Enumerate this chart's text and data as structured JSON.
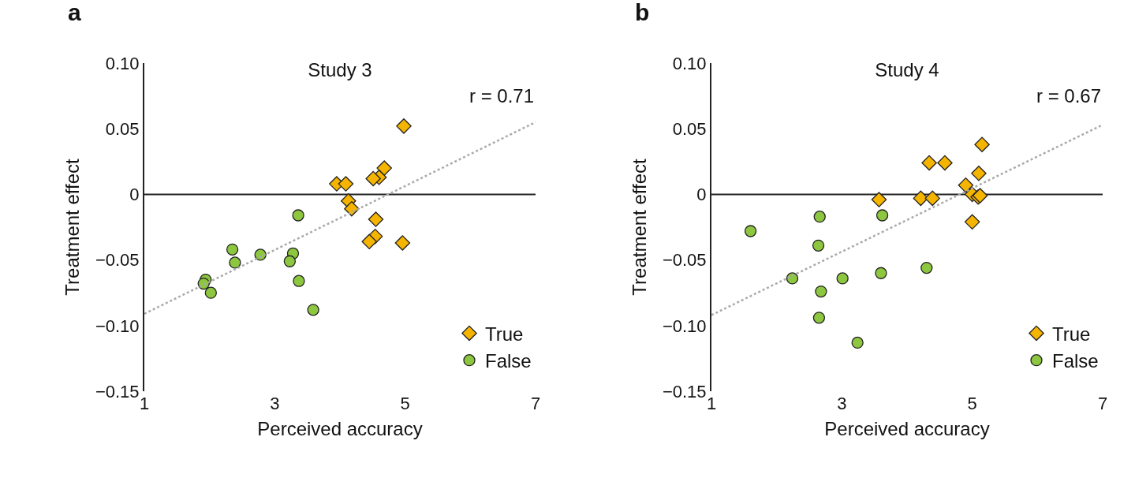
{
  "chart_data": [
    {
      "type": "scatter",
      "title": "Study 3",
      "xlabel": "Perceived accuracy",
      "ylabel": "Treatment effect",
      "annotations": [
        "a",
        "r = 0.71"
      ],
      "xlim": [
        1,
        7
      ],
      "xticks": [
        1,
        3,
        5,
        7
      ],
      "ylim": [
        -0.15,
        0.1
      ],
      "yticks": [
        {
          "value": -0.15,
          "label": "−0.15"
        },
        {
          "value": -0.1,
          "label": "−0.10"
        },
        {
          "value": -0.05,
          "label": "−0.05"
        },
        {
          "value": 0,
          "label": "0"
        },
        0.05,
        {
          "value": 0.1,
          "label": "0.10"
        }
      ],
      "grid": false,
      "legend": "bottom right",
      "ref_lines": [
        {
          "axis": "y",
          "value": 0,
          "color": "#222222"
        }
      ],
      "series": [
        {
          "name": "True",
          "marker": "diamond",
          "color": "#f5b400",
          "x": [
            4.98,
            3.95,
            4.09,
            4.68,
            4.6,
            4.51,
            4.13,
            4.18,
            4.55,
            4.54,
            4.45,
            4.96
          ],
          "values": [
            0.052,
            0.008,
            0.008,
            0.02,
            0.013,
            0.012,
            -0.005,
            -0.011,
            -0.019,
            -0.032,
            -0.036,
            -0.037
          ]
        },
        {
          "name": "False",
          "marker": "circle",
          "color": "#8dc63f",
          "x": [
            3.36,
            2.35,
            2.39,
            2.78,
            3.28,
            3.23,
            3.37,
            3.59,
            1.94,
            1.91,
            2.02
          ],
          "values": [
            -0.016,
            -0.042,
            -0.052,
            -0.046,
            -0.045,
            -0.051,
            -0.066,
            -0.088,
            -0.065,
            -0.068,
            -0.075
          ]
        },
        {
          "type": "line",
          "marker": "none",
          "line_style": "dotted",
          "color": "#aaaaaa",
          "x": [
            1,
            7
          ],
          "values": [
            -0.091,
            0.055
          ]
        }
      ]
    },
    {
      "type": "scatter",
      "title": "Study 4",
      "xlabel": "Perceived accuracy",
      "ylabel": "Treatment effect",
      "annotations": [
        "b",
        "r = 0.67"
      ],
      "xlim": [
        1,
        7
      ],
      "xticks": [
        1,
        3,
        5,
        7
      ],
      "ylim": [
        -0.15,
        0.1
      ],
      "yticks": [
        {
          "value": -0.15,
          "label": "−0.15"
        },
        {
          "value": -0.1,
          "label": "−0.10"
        },
        {
          "value": -0.05,
          "label": "−0.05"
        },
        {
          "value": 0,
          "label": "0"
        },
        0.05,
        {
          "value": 0.1,
          "label": "0.10"
        }
      ],
      "grid": false,
      "legend": "bottom right",
      "ref_lines": [
        {
          "axis": "y",
          "value": 0,
          "color": "#222222"
        }
      ],
      "series": [
        {
          "name": "True",
          "marker": "diamond",
          "color": "#f5b400",
          "x": [
            5.15,
            4.34,
            4.58,
            5.1,
            4.9,
            5.0,
            5.09,
            5.12,
            3.57,
            4.21,
            4.39,
            5.0
          ],
          "values": [
            0.038,
            0.024,
            0.024,
            0.016,
            0.007,
            0.0,
            -0.002,
            -0.001,
            -0.004,
            -0.003,
            -0.003,
            -0.021
          ]
        },
        {
          "name": "False",
          "marker": "circle",
          "color": "#8dc63f",
          "x": [
            1.6,
            2.66,
            3.62,
            2.64,
            2.24,
            3.01,
            3.6,
            4.3,
            2.68,
            2.65,
            3.24
          ],
          "values": [
            -0.028,
            -0.017,
            -0.016,
            -0.039,
            -0.064,
            -0.064,
            -0.06,
            -0.056,
            -0.074,
            -0.094,
            -0.113
          ]
        },
        {
          "type": "line",
          "marker": "none",
          "line_style": "dotted",
          "color": "#aaaaaa",
          "x": [
            1,
            7
          ],
          "values": [
            -0.092,
            0.053
          ]
        }
      ]
    }
  ]
}
